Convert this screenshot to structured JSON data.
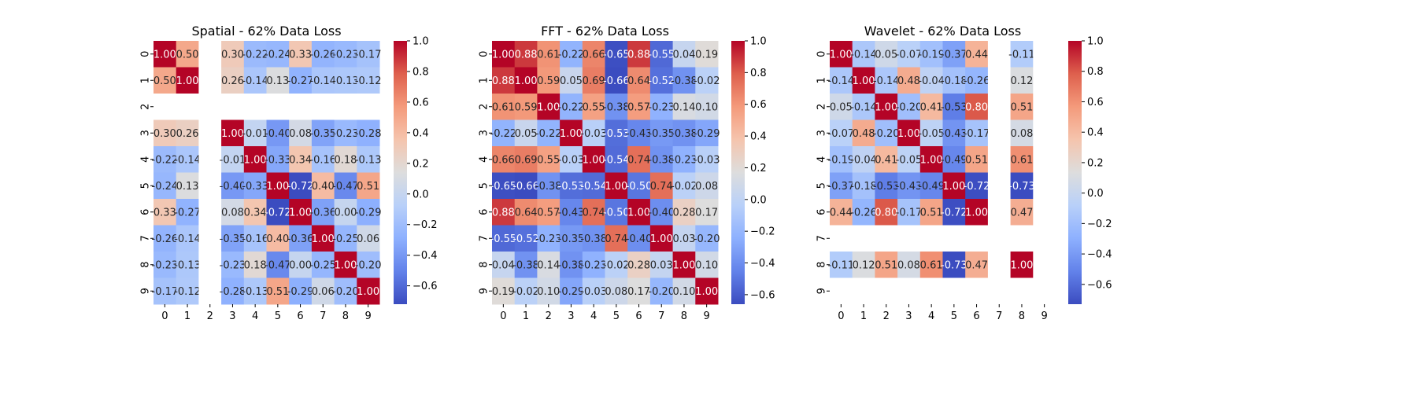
{
  "chart_data": [
    {
      "type": "heatmap",
      "title": "Spatial - 62% Data Loss",
      "xticks": [
        "0",
        "1",
        "2",
        "3",
        "4",
        "5",
        "6",
        "7",
        "8",
        "9"
      ],
      "yticks": [
        "0",
        "1",
        "2",
        "3",
        "4",
        "5",
        "6",
        "7",
        "8",
        "9"
      ],
      "colorbar_ticks": [
        "1.0",
        "0.8",
        "0.6",
        "0.4",
        "0.2",
        "0.0",
        "−0.2",
        "−0.4",
        "−0.6"
      ],
      "colormap": "coolwarm",
      "vmin": -0.72,
      "vmax": 1.0,
      "missing_color": "#ffffff",
      "values": [
        [
          1.0,
          0.5,
          null,
          0.3,
          -0.22,
          -0.24,
          0.33,
          -0.26,
          -0.23,
          -0.17
        ],
        [
          0.5,
          1.0,
          null,
          0.26,
          -0.14,
          0.13,
          -0.27,
          -0.14,
          -0.13,
          -0.12
        ],
        [
          null,
          null,
          null,
          null,
          null,
          null,
          null,
          null,
          null,
          null
        ],
        [
          0.3,
          0.26,
          null,
          1.0,
          -0.01,
          -0.4,
          0.08,
          -0.35,
          -0.23,
          -0.28
        ],
        [
          -0.22,
          -0.14,
          null,
          -0.01,
          1.0,
          -0.33,
          0.34,
          -0.16,
          0.18,
          -0.13
        ],
        [
          -0.24,
          0.13,
          null,
          -0.4,
          -0.33,
          1.0,
          -0.72,
          0.4,
          -0.47,
          0.51
        ],
        [
          0.33,
          -0.27,
          null,
          0.08,
          0.34,
          -0.72,
          1.0,
          -0.36,
          0.0,
          -0.29
        ],
        [
          -0.26,
          -0.14,
          null,
          -0.35,
          -0.16,
          0.4,
          -0.36,
          1.0,
          -0.25,
          0.06
        ],
        [
          -0.23,
          -0.13,
          null,
          -0.23,
          0.18,
          -0.47,
          0.0,
          -0.25,
          1.0,
          -0.2
        ],
        [
          -0.17,
          -0.12,
          null,
          -0.28,
          -0.13,
          0.51,
          -0.29,
          0.06,
          -0.2,
          1.0
        ]
      ],
      "labels": [
        [
          "1.00",
          "0.50",
          "",
          "0.30",
          "-0.22",
          "-0.24",
          "0.33",
          "-0.26",
          "-0.23",
          "-0.17"
        ],
        [
          "0.50",
          "1.00",
          "",
          "0.26",
          "-0.14",
          "0.13",
          "-0.27",
          "-0.14",
          "-0.13",
          "-0.12"
        ],
        [
          "",
          "",
          "",
          "",
          "",
          "",
          "",
          "",
          "",
          ""
        ],
        [
          "0.30",
          "0.26",
          "",
          "1.00",
          "-0.01",
          "-0.40",
          "0.08",
          "-0.35",
          "-0.23",
          "-0.28"
        ],
        [
          "-0.22",
          "-0.14",
          "",
          "-0.01",
          "1.00",
          "-0.33",
          "0.34",
          "-0.16",
          "0.18",
          "-0.13"
        ],
        [
          "-0.24",
          "0.13",
          "",
          "-0.40",
          "-0.33",
          "1.00",
          "-0.72",
          "0.40",
          "-0.47",
          "0.51"
        ],
        [
          "0.33",
          "-0.27",
          "",
          "0.08",
          "0.34",
          "-0.72",
          "1.00",
          "-0.36",
          "0.00",
          "-0.29"
        ],
        [
          "-0.26",
          "-0.14",
          "",
          "-0.35",
          "-0.16",
          "0.40",
          "-0.36",
          "1.00",
          "-0.25",
          "0.06"
        ],
        [
          "-0.23",
          "-0.13",
          "",
          "-0.23",
          "0.18",
          "-0.47",
          "0.00",
          "-0.25",
          "1.00",
          "-0.20"
        ],
        [
          "-0.17",
          "-0.12",
          "",
          "-0.28",
          "-0.13",
          "0.51",
          "-0.29",
          "0.06",
          "-0.20",
          "1.00"
        ]
      ]
    },
    {
      "type": "heatmap",
      "title": "FFT - 62% Data Loss",
      "xticks": [
        "0",
        "1",
        "2",
        "3",
        "4",
        "5",
        "6",
        "7",
        "8",
        "9"
      ],
      "yticks": [
        "0",
        "1",
        "2",
        "3",
        "4",
        "5",
        "6",
        "7",
        "8",
        "9"
      ],
      "colorbar_ticks": [
        "1.0",
        "0.8",
        "0.6",
        "0.4",
        "0.2",
        "0.0",
        "−0.2",
        "−0.4",
        "−0.6"
      ],
      "colormap": "coolwarm",
      "vmin": -0.66,
      "vmax": 1.0,
      "missing_color": "#ffffff",
      "values": [
        [
          1.0,
          0.88,
          0.61,
          -0.22,
          0.66,
          -0.65,
          0.88,
          -0.55,
          0.04,
          0.19
        ],
        [
          0.88,
          1.0,
          0.59,
          0.05,
          0.69,
          -0.66,
          0.64,
          -0.52,
          -0.38,
          -0.02
        ],
        [
          0.61,
          0.59,
          1.0,
          -0.22,
          0.55,
          -0.38,
          0.57,
          -0.23,
          0.14,
          0.1
        ],
        [
          -0.22,
          0.05,
          -0.22,
          1.0,
          -0.03,
          -0.53,
          -0.43,
          -0.35,
          -0.38,
          -0.29
        ],
        [
          0.66,
          0.69,
          0.55,
          -0.03,
          1.0,
          -0.54,
          0.74,
          -0.38,
          -0.23,
          -0.03
        ],
        [
          -0.65,
          -0.66,
          -0.38,
          -0.53,
          -0.54,
          1.0,
          -0.5,
          0.74,
          -0.02,
          0.08
        ],
        [
          0.88,
          0.64,
          0.57,
          -0.43,
          0.74,
          -0.5,
          1.0,
          -0.4,
          0.28,
          0.17
        ],
        [
          -0.55,
          -0.52,
          -0.23,
          -0.35,
          -0.38,
          0.74,
          -0.4,
          1.0,
          0.03,
          -0.2
        ],
        [
          0.04,
          -0.38,
          0.14,
          -0.38,
          -0.23,
          -0.02,
          0.28,
          0.03,
          1.0,
          0.1
        ],
        [
          0.19,
          -0.02,
          0.1,
          -0.29,
          -0.03,
          0.08,
          0.17,
          -0.2,
          0.1,
          1.0
        ]
      ],
      "labels": [
        [
          "1.00",
          "0.88",
          "0.61",
          "-0.22",
          "0.66",
          "-0.65",
          "0.88",
          "-0.55",
          "0.04",
          "0.19"
        ],
        [
          "0.88",
          "1.00",
          "0.59",
          "0.05",
          "0.69",
          "-0.66",
          "0.64",
          "-0.52",
          "-0.38",
          "-0.02"
        ],
        [
          "0.61",
          "0.59",
          "1.00",
          "-0.22",
          "0.55",
          "-0.38",
          "0.57",
          "-0.23",
          "0.14",
          "0.10"
        ],
        [
          "-0.22",
          "0.05",
          "-0.22",
          "1.00",
          "-0.03",
          "-0.53",
          "-0.43",
          "-0.35",
          "-0.38",
          "-0.29"
        ],
        [
          "0.66",
          "0.69",
          "0.55",
          "-0.03",
          "1.00",
          "-0.54",
          "0.74",
          "-0.38",
          "-0.23",
          "-0.03"
        ],
        [
          "-0.65",
          "-0.66",
          "-0.38",
          "-0.53",
          "-0.54",
          "1.00",
          "-0.50",
          "0.74",
          "-0.02",
          "0.08"
        ],
        [
          "0.88",
          "0.64",
          "0.57",
          "-0.43",
          "0.74",
          "-0.50",
          "1.00",
          "-0.40",
          "0.28",
          "0.17"
        ],
        [
          "-0.55",
          "-0.52",
          "-0.23",
          "-0.35",
          "-0.38",
          "0.74",
          "-0.40",
          "1.00",
          "0.03",
          "-0.20"
        ],
        [
          "0.04",
          "-0.38",
          "0.14",
          "-0.38",
          "-0.23",
          "-0.02",
          "0.28",
          "0.03",
          "1.00",
          "0.10"
        ],
        [
          "0.19",
          "-0.02",
          "0.10",
          "-0.29",
          "-0.03",
          "0.08",
          "0.17",
          "-0.20",
          "0.10",
          "1.00"
        ]
      ]
    },
    {
      "type": "heatmap",
      "title": "Wavelet - 62% Data Loss",
      "xticks": [
        "0",
        "1",
        "2",
        "3",
        "4",
        "5",
        "6",
        "7",
        "8",
        "9"
      ],
      "yticks": [
        "0",
        "1",
        "2",
        "3",
        "4",
        "5",
        "6",
        "7",
        "8",
        "9"
      ],
      "colorbar_ticks": [
        "1.0",
        "0.8",
        "0.6",
        "0.4",
        "0.2",
        "0.0",
        "−0.2",
        "−0.4",
        "−0.6"
      ],
      "colormap": "coolwarm",
      "vmin": -0.73,
      "vmax": 1.0,
      "missing_color": "#ffffff",
      "values": [
        [
          1.0,
          -0.14,
          0.05,
          -0.07,
          -0.19,
          -0.37,
          0.44,
          null,
          -0.11,
          null
        ],
        [
          -0.14,
          1.0,
          -0.14,
          0.48,
          -0.04,
          -0.18,
          -0.26,
          null,
          0.12,
          null
        ],
        [
          0.05,
          -0.14,
          1.0,
          -0.2,
          0.41,
          -0.53,
          0.8,
          null,
          0.51,
          null
        ],
        [
          -0.07,
          0.48,
          -0.2,
          1.0,
          -0.05,
          -0.43,
          -0.17,
          null,
          0.08,
          null
        ],
        [
          -0.19,
          -0.04,
          0.41,
          -0.05,
          1.0,
          -0.49,
          0.51,
          null,
          0.61,
          null
        ],
        [
          -0.37,
          -0.18,
          -0.53,
          -0.43,
          -0.49,
          1.0,
          -0.72,
          null,
          -0.73,
          null
        ],
        [
          0.44,
          -0.26,
          0.8,
          -0.17,
          0.51,
          -0.72,
          1.0,
          null,
          0.47,
          null
        ],
        [
          null,
          null,
          null,
          null,
          null,
          null,
          null,
          null,
          null,
          null
        ],
        [
          -0.11,
          0.12,
          0.51,
          0.08,
          0.61,
          -0.73,
          0.47,
          null,
          1.0,
          null
        ],
        [
          null,
          null,
          null,
          null,
          null,
          null,
          null,
          null,
          null,
          null
        ]
      ],
      "labels": [
        [
          "1.00",
          "-0.14",
          "0.05",
          "-0.07",
          "-0.19",
          "-0.37",
          "0.44",
          "",
          "-0.11",
          ""
        ],
        [
          "-0.14",
          "1.00",
          "-0.14",
          "0.48",
          "-0.04",
          "-0.18",
          "-0.26",
          "",
          "0.12",
          ""
        ],
        [
          "0.05",
          "-0.14",
          "1.00",
          "-0.20",
          "0.41",
          "-0.53",
          "0.80",
          "",
          "0.51",
          ""
        ],
        [
          "-0.07",
          "0.48",
          "-0.20",
          "1.00",
          "-0.05",
          "-0.43",
          "-0.17",
          "",
          "0.08",
          ""
        ],
        [
          "-0.19",
          "-0.04",
          "0.41",
          "-0.05",
          "1.00",
          "-0.49",
          "0.51",
          "",
          "0.61",
          ""
        ],
        [
          "-0.37",
          "-0.18",
          "-0.53",
          "-0.43",
          "-0.49",
          "1.00",
          "-0.72",
          "",
          "-0.73",
          ""
        ],
        [
          "0.44",
          "-0.26",
          "0.80",
          "-0.17",
          "0.51",
          "-0.72",
          "1.00",
          "",
          "0.47",
          ""
        ],
        [
          "",
          "",
          "",
          "",
          "",
          "",
          "",
          "",
          "",
          ""
        ],
        [
          "-0.11",
          "0.12",
          "0.51",
          "0.08",
          "0.61",
          "-0.73",
          "0.47",
          "",
          "1.00",
          ""
        ],
        [
          "",
          "",
          "",
          "",
          "",
          "",
          "",
          "",
          "",
          ""
        ]
      ]
    }
  ]
}
